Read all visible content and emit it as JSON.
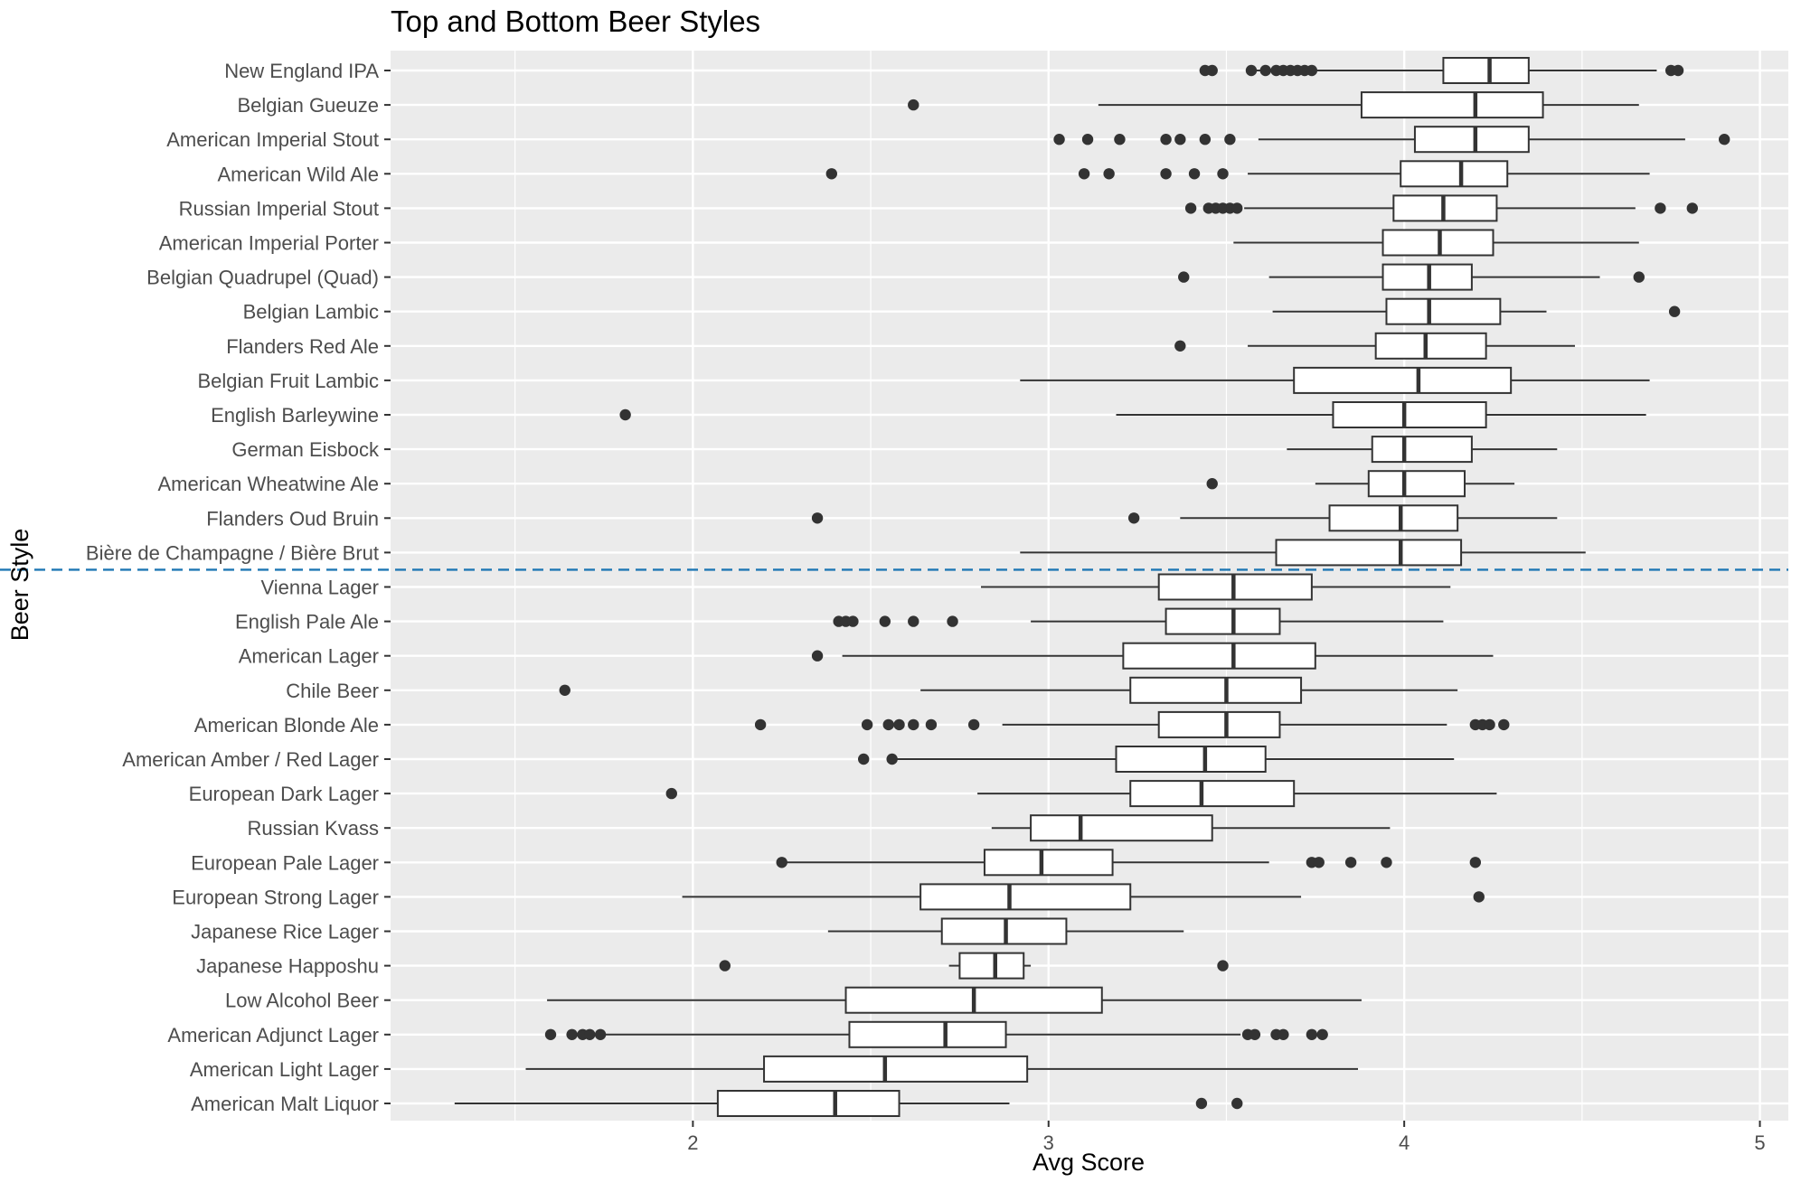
{
  "chart_data": {
    "type": "boxplot",
    "title": "Top and Bottom Beer Styles",
    "xlabel": "Avg Score",
    "ylabel": "Beer Style",
    "xlim": [
      1.15,
      5.08
    ],
    "x_ticks": [
      2,
      3,
      4,
      5
    ],
    "grid": true,
    "divider_after_index": 14,
    "colors": {
      "panel_background": "#EBEBEB",
      "grid_line": "#FFFFFF",
      "box_fill": "#FFFFFF",
      "box_stroke": "#333333",
      "divider": "#1F77B4"
    },
    "series": [
      {
        "category": "New England IPA",
        "whisker_low": 3.58,
        "q1": 4.11,
        "median": 4.24,
        "q3": 4.35,
        "whisker_high": 4.71,
        "outliers": [
          3.44,
          3.46,
          3.57,
          3.61,
          3.64,
          3.66,
          3.68,
          3.7,
          3.72,
          3.74,
          4.75,
          4.77
        ]
      },
      {
        "category": "Belgian Gueuze",
        "whisker_low": 3.14,
        "q1": 3.88,
        "median": 4.2,
        "q3": 4.39,
        "whisker_high": 4.66,
        "outliers": [
          2.62
        ]
      },
      {
        "category": "American Imperial Stout",
        "whisker_low": 3.59,
        "q1": 4.03,
        "median": 4.2,
        "q3": 4.35,
        "whisker_high": 4.79,
        "outliers": [
          3.03,
          3.11,
          3.2,
          3.33,
          3.37,
          3.44,
          3.51,
          4.9
        ]
      },
      {
        "category": "American Wild Ale",
        "whisker_low": 3.56,
        "q1": 3.99,
        "median": 4.16,
        "q3": 4.29,
        "whisker_high": 4.69,
        "outliers": [
          2.39,
          3.1,
          3.17,
          3.33,
          3.41,
          3.49
        ]
      },
      {
        "category": "Russian Imperial Stout",
        "whisker_low": 3.55,
        "q1": 3.97,
        "median": 4.11,
        "q3": 4.26,
        "whisker_high": 4.65,
        "outliers": [
          3.4,
          3.45,
          3.47,
          3.49,
          3.51,
          3.53,
          4.72,
          4.81
        ]
      },
      {
        "category": "American Imperial Porter",
        "whisker_low": 3.52,
        "q1": 3.94,
        "median": 4.1,
        "q3": 4.25,
        "whisker_high": 4.66,
        "outliers": []
      },
      {
        "category": "Belgian Quadrupel (Quad)",
        "whisker_low": 3.62,
        "q1": 3.94,
        "median": 4.07,
        "q3": 4.19,
        "whisker_high": 4.55,
        "outliers": [
          3.38,
          4.66
        ]
      },
      {
        "category": "Belgian Lambic",
        "whisker_low": 3.63,
        "q1": 3.95,
        "median": 4.07,
        "q3": 4.27,
        "whisker_high": 4.4,
        "outliers": [
          4.76
        ]
      },
      {
        "category": "Flanders Red Ale",
        "whisker_low": 3.56,
        "q1": 3.92,
        "median": 4.06,
        "q3": 4.23,
        "whisker_high": 4.48,
        "outliers": [
          3.37
        ]
      },
      {
        "category": "Belgian Fruit Lambic",
        "whisker_low": 2.92,
        "q1": 3.69,
        "median": 4.04,
        "q3": 4.3,
        "whisker_high": 4.69,
        "outliers": []
      },
      {
        "category": "English Barleywine",
        "whisker_low": 3.19,
        "q1": 3.8,
        "median": 4.0,
        "q3": 4.23,
        "whisker_high": 4.68,
        "outliers": [
          1.81
        ]
      },
      {
        "category": "German Eisbock",
        "whisker_low": 3.67,
        "q1": 3.91,
        "median": 4.0,
        "q3": 4.19,
        "whisker_high": 4.43,
        "outliers": []
      },
      {
        "category": "American Wheatwine Ale",
        "whisker_low": 3.75,
        "q1": 3.9,
        "median": 4.0,
        "q3": 4.17,
        "whisker_high": 4.31,
        "outliers": [
          3.46
        ]
      },
      {
        "category": "Flanders Oud Bruin",
        "whisker_low": 3.37,
        "q1": 3.79,
        "median": 3.99,
        "q3": 4.15,
        "whisker_high": 4.43,
        "outliers": [
          2.35,
          3.24
        ]
      },
      {
        "category": "Bière de Champagne / Bière Brut",
        "whisker_low": 2.92,
        "q1": 3.64,
        "median": 3.99,
        "q3": 4.16,
        "whisker_high": 4.51,
        "outliers": []
      },
      {
        "category": "Vienna Lager",
        "whisker_low": 2.81,
        "q1": 3.31,
        "median": 3.52,
        "q3": 3.74,
        "whisker_high": 4.13,
        "outliers": []
      },
      {
        "category": "English Pale Ale",
        "whisker_low": 2.95,
        "q1": 3.33,
        "median": 3.52,
        "q3": 3.65,
        "whisker_high": 4.11,
        "outliers": [
          2.41,
          2.43,
          2.45,
          2.54,
          2.62,
          2.73
        ]
      },
      {
        "category": "American Lager",
        "whisker_low": 2.42,
        "q1": 3.21,
        "median": 3.52,
        "q3": 3.75,
        "whisker_high": 4.25,
        "outliers": [
          2.35
        ]
      },
      {
        "category": "Chile Beer",
        "whisker_low": 2.64,
        "q1": 3.23,
        "median": 3.5,
        "q3": 3.71,
        "whisker_high": 4.15,
        "outliers": [
          1.64
        ]
      },
      {
        "category": "American Blonde Ale",
        "whisker_low": 2.87,
        "q1": 3.31,
        "median": 3.5,
        "q3": 3.65,
        "whisker_high": 4.12,
        "outliers": [
          2.19,
          2.49,
          2.55,
          2.58,
          2.62,
          2.67,
          2.79,
          4.2,
          4.22,
          4.24,
          4.28
        ]
      },
      {
        "category": "American Amber / Red Lager",
        "whisker_low": 2.57,
        "q1": 3.19,
        "median": 3.44,
        "q3": 3.61,
        "whisker_high": 4.14,
        "outliers": [
          2.48,
          2.56
        ]
      },
      {
        "category": "European Dark Lager",
        "whisker_low": 2.8,
        "q1": 3.23,
        "median": 3.43,
        "q3": 3.69,
        "whisker_high": 4.26,
        "outliers": [
          1.94
        ]
      },
      {
        "category": "Russian Kvass",
        "whisker_low": 2.84,
        "q1": 2.95,
        "median": 3.09,
        "q3": 3.46,
        "whisker_high": 3.96,
        "outliers": []
      },
      {
        "category": "European Pale Lager",
        "whisker_low": 2.26,
        "q1": 2.82,
        "median": 2.98,
        "q3": 3.18,
        "whisker_high": 3.62,
        "outliers": [
          2.25,
          3.74,
          3.76,
          3.85,
          3.95,
          4.2
        ]
      },
      {
        "category": "European Strong Lager",
        "whisker_low": 1.97,
        "q1": 2.64,
        "median": 2.89,
        "q3": 3.23,
        "whisker_high": 3.71,
        "outliers": [
          4.21
        ]
      },
      {
        "category": "Japanese Rice Lager",
        "whisker_low": 2.38,
        "q1": 2.7,
        "median": 2.88,
        "q3": 3.05,
        "whisker_high": 3.38,
        "outliers": []
      },
      {
        "category": "Japanese Happoshu",
        "whisker_low": 2.72,
        "q1": 2.75,
        "median": 2.85,
        "q3": 2.93,
        "whisker_high": 2.95,
        "outliers": [
          2.09,
          3.49
        ]
      },
      {
        "category": "Low Alcohol Beer",
        "whisker_low": 1.59,
        "q1": 2.43,
        "median": 2.79,
        "q3": 3.15,
        "whisker_high": 3.88,
        "outliers": []
      },
      {
        "category": "American Adjunct Lager",
        "whisker_low": 1.75,
        "q1": 2.44,
        "median": 2.71,
        "q3": 2.88,
        "whisker_high": 3.54,
        "outliers": [
          1.6,
          1.66,
          1.69,
          1.71,
          1.74,
          3.56,
          3.58,
          3.64,
          3.66,
          3.74,
          3.77
        ]
      },
      {
        "category": "American Light Lager",
        "whisker_low": 1.53,
        "q1": 2.2,
        "median": 2.54,
        "q3": 2.94,
        "whisker_high": 3.87,
        "outliers": []
      },
      {
        "category": "American Malt Liquor",
        "whisker_low": 1.33,
        "q1": 2.07,
        "median": 2.4,
        "q3": 2.58,
        "whisker_high": 2.89,
        "outliers": [
          3.43,
          3.53
        ]
      }
    ]
  }
}
